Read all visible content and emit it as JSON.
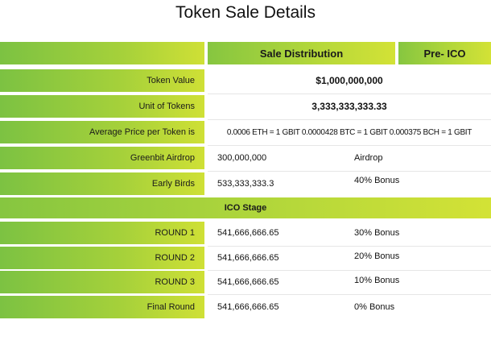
{
  "title": "Token Sale Details",
  "header": {
    "sale_distribution": "Sale Distribution",
    "pre_ico": "Pre- ICO"
  },
  "rows": [
    {
      "label": "Token Value",
      "value": "$1,000,000,000"
    },
    {
      "label": "Unit of Tokens",
      "value": "3,333,333,333.33"
    },
    {
      "label": "Average Price per Token is",
      "value": "0.0006 ETH = 1 GBIT  0.0000428 BTC = 1 GBIT  0.000375 BCH = 1 GBIT"
    },
    {
      "label": "Greenbit Airdrop",
      "value": "300,000,000",
      "note": "Airdrop"
    },
    {
      "label": "Early Birds",
      "value": "533,333,333.3",
      "note": "40% Bonus"
    }
  ],
  "ico_stage": "ICO Stage",
  "ico_rows": [
    {
      "label": "ROUND 1",
      "value": "541,666,666.65",
      "note": "30% Bonus"
    },
    {
      "label": "ROUND 2",
      "value": "541,666,666.65",
      "note": "20% Bonus"
    },
    {
      "label": "ROUND 3",
      "value": "541,666,666.65",
      "note": "10% Bonus"
    },
    {
      "label": "Final Round",
      "value": "541,666,666.65",
      "note": "0% Bonus"
    }
  ]
}
